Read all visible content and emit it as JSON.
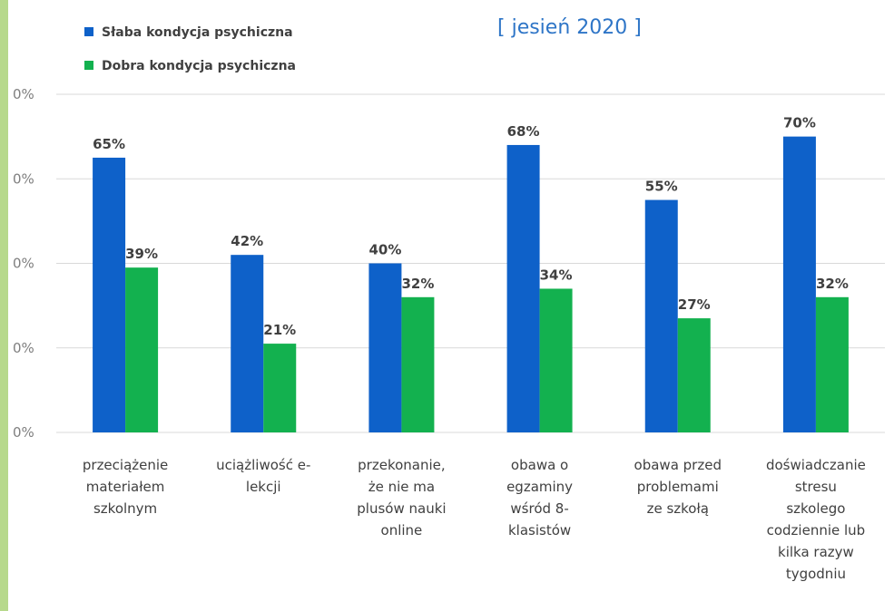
{
  "colors": {
    "page_strip": "#b7d98c",
    "series_weak": "#0e61c9",
    "series_good": "#13b14f",
    "gridline": "#d9d9d9",
    "subtitle": "#2e75c7"
  },
  "chart_data": {
    "type": "bar",
    "subtitle": "[ jesień 2020 ]",
    "categories": [
      [
        "przeciążenie",
        "materiałem",
        "szkolnym"
      ],
      [
        "uciążliwość e-",
        "lekcji"
      ],
      [
        "przekonanie,",
        "że nie ma",
        "plusów nauki",
        "online"
      ],
      [
        "obawa o",
        "egzaminy",
        "wśród 8-",
        "klasistów"
      ],
      [
        "obawa przed",
        "problemami",
        "ze szkołą"
      ],
      [
        "doświadczanie",
        "stresu",
        "szkolego",
        "codziennie lub",
        "kilka razyw",
        "tygodniu"
      ]
    ],
    "series": [
      {
        "name": "Słaba kondycja psychiczna",
        "values": [
          65,
          42,
          40,
          68,
          55,
          70
        ],
        "labels": [
          "65%",
          "42%",
          "40%",
          "68%",
          "55%",
          "70%"
        ]
      },
      {
        "name": "Dobra kondycja psychiczna",
        "values": [
          39,
          21,
          32,
          34,
          27,
          32
        ],
        "labels": [
          "39%",
          "21%",
          "32%",
          "34%",
          "27%",
          "32%"
        ]
      }
    ],
    "y_tick_labels": [
      "0%",
      "0%",
      "0%",
      "0%",
      "0%"
    ],
    "ylim": [
      0,
      80
    ],
    "grid": true,
    "legend_position": "top-left"
  }
}
